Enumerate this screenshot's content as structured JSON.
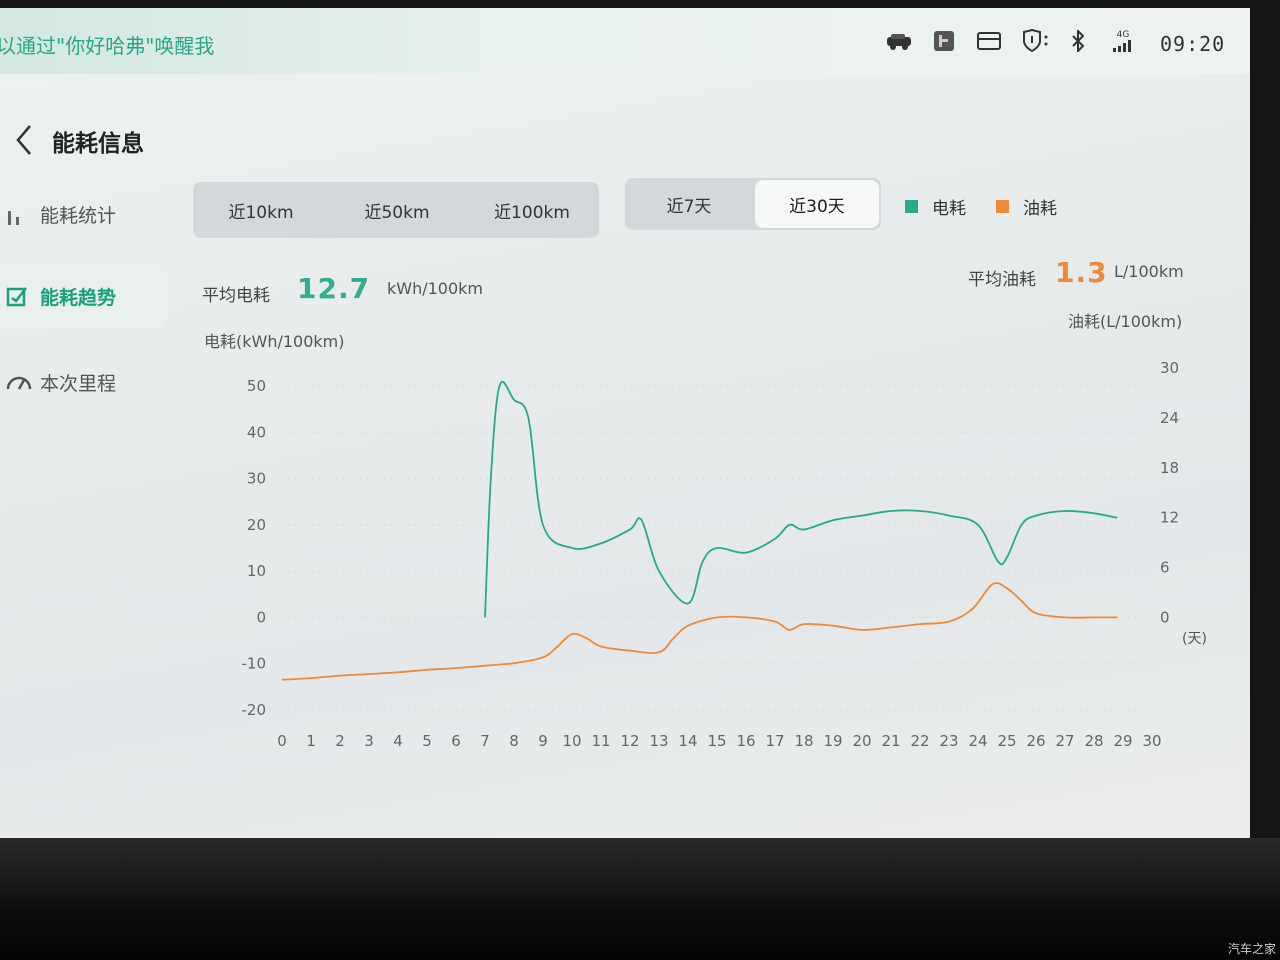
{
  "status_bar": {
    "voice_hint": "以通过\"你好哈弗\"唤醒我",
    "time": "09:20",
    "icons": [
      "vehicle-icon",
      "app-badge-icon",
      "mail-icon",
      "shield-icon",
      "bluetooth-icon",
      "signal-4g-icon"
    ],
    "signal_label": "4G"
  },
  "header": {
    "title": "能耗信息"
  },
  "sidebar": {
    "items": [
      {
        "label": "能耗统计",
        "icon": "bar-chart-icon",
        "active": false
      },
      {
        "label": "能耗趋势",
        "icon": "trend-icon",
        "active": true
      },
      {
        "label": "本次里程",
        "icon": "gauge-icon",
        "active": false
      }
    ]
  },
  "distance_tabs": [
    "近10km",
    "近50km",
    "近100km"
  ],
  "period_tabs": {
    "items": [
      "近7天",
      "近30天"
    ],
    "selected": "近30天"
  },
  "legend": [
    {
      "label": "电耗",
      "color": "#27a98b"
    },
    {
      "label": "油耗",
      "color": "#ee8a3c"
    }
  ],
  "stats": {
    "electric": {
      "label": "平均电耗",
      "value": "12.7",
      "unit": "kWh/100km",
      "color": "#2fae92"
    },
    "fuel": {
      "label": "平均油耗",
      "value": "1.3",
      "unit": "L/100km",
      "color": "#ee8a3c"
    }
  },
  "watermark": "汽车之家",
  "chart_data": {
    "type": "line",
    "y_left_label": "电耗(kWh/100km)",
    "y_right_label": "油耗(L/100km)",
    "x_unit_label": "(天)",
    "y_left_ticks": [
      "50",
      "40",
      "30",
      "20",
      "10",
      "0",
      "-10",
      "-20"
    ],
    "y_right_ticks": [
      "30",
      "24",
      "18",
      "12",
      "6",
      "0"
    ],
    "x_ticks": [
      "0",
      "1",
      "2",
      "3",
      "4",
      "5",
      "6",
      "7",
      "8",
      "9",
      "10",
      "11",
      "12",
      "13",
      "14",
      "15",
      "16",
      "17",
      "18",
      "19",
      "20",
      "21",
      "22",
      "23",
      "24",
      "25",
      "26",
      "27",
      "28",
      "29",
      "30"
    ],
    "ylim_left": [
      -20,
      50
    ],
    "ylim_right": [
      0,
      30
    ],
    "series": [
      {
        "name": "电耗",
        "color": "#27a98b",
        "points": [
          [
            7,
            0
          ],
          [
            7.2,
            30
          ],
          [
            7.5,
            50
          ],
          [
            8,
            47
          ],
          [
            8.5,
            43
          ],
          [
            9,
            20
          ],
          [
            10,
            15
          ],
          [
            11,
            16
          ],
          [
            12,
            19
          ],
          [
            12.4,
            21
          ],
          [
            13,
            10
          ],
          [
            14,
            3
          ],
          [
            14.5,
            12
          ],
          [
            15,
            15
          ],
          [
            16,
            14
          ],
          [
            17,
            17
          ],
          [
            17.5,
            20
          ],
          [
            18,
            19
          ],
          [
            19,
            21
          ],
          [
            20,
            22
          ],
          [
            21,
            23
          ],
          [
            22,
            23
          ],
          [
            23,
            22
          ],
          [
            24,
            20
          ],
          [
            24.7,
            12
          ],
          [
            25,
            13
          ],
          [
            25.5,
            20
          ],
          [
            26,
            22
          ],
          [
            27,
            23
          ],
          [
            28,
            22.5
          ],
          [
            28.8,
            21.5
          ]
        ]
      },
      {
        "name": "油耗",
        "color": "#ee8a3c",
        "points": [
          [
            0,
            -7.5
          ],
          [
            1,
            -7.3
          ],
          [
            2,
            -7.0
          ],
          [
            3,
            -6.8
          ],
          [
            4,
            -6.6
          ],
          [
            5,
            -6.3
          ],
          [
            6,
            -6.1
          ],
          [
            7,
            -5.8
          ],
          [
            8,
            -5.5
          ],
          [
            9,
            -4.8
          ],
          [
            9.5,
            -3.5
          ],
          [
            10,
            -2
          ],
          [
            10.5,
            -2.5
          ],
          [
            11,
            -3.5
          ],
          [
            12,
            -4
          ],
          [
            13,
            -4.2
          ],
          [
            13.5,
            -2.5
          ],
          [
            14,
            -1
          ],
          [
            15,
            0
          ],
          [
            16,
            0
          ],
          [
            17,
            -0.5
          ],
          [
            17.5,
            -1.5
          ],
          [
            18,
            -0.8
          ],
          [
            19,
            -1
          ],
          [
            20,
            -1.5
          ],
          [
            21,
            -1.2
          ],
          [
            22,
            -0.8
          ],
          [
            23,
            -0.5
          ],
          [
            23.8,
            1
          ],
          [
            24.5,
            4
          ],
          [
            25,
            3.5
          ],
          [
            25.5,
            2
          ],
          [
            26,
            0.5
          ],
          [
            27,
            0
          ],
          [
            28,
            0
          ],
          [
            28.8,
            0
          ]
        ]
      }
    ]
  }
}
